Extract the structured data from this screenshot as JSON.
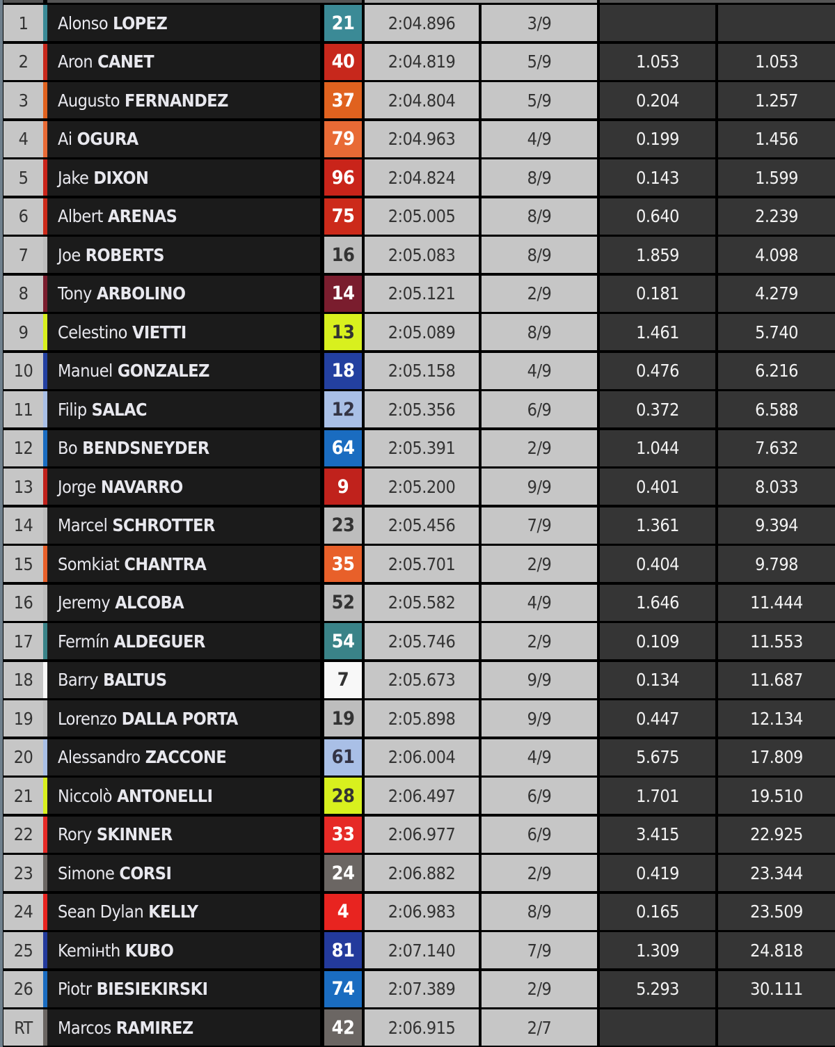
{
  "rows": [
    {
      "pos": "1",
      "first": "Alonso",
      "last": "LOPEZ",
      "num": "21",
      "color": "#3b8a96",
      "num_text": "#ffffff",
      "time": "2:04.896",
      "laps": "3/9",
      "gap": "",
      "total": ""
    },
    {
      "pos": "2",
      "first": "Aron",
      "last": "CANET",
      "num": "40",
      "color": "#c7281c",
      "num_text": "#ffffff",
      "time": "2:04.819",
      "laps": "5/9",
      "gap": "1.053",
      "total": "1.053"
    },
    {
      "pos": "3",
      "first": "Augusto",
      "last": "FERNANDEZ",
      "num": "37",
      "color": "#e0621f",
      "num_text": "#ffffff",
      "time": "2:04.804",
      "laps": "5/9",
      "gap": "0.204",
      "total": "1.257"
    },
    {
      "pos": "4",
      "first": "Ai",
      "last": "OGURA",
      "num": "79",
      "color": "#e86a35",
      "num_text": "#ffffff",
      "time": "2:04.963",
      "laps": "4/9",
      "gap": "0.199",
      "total": "1.456"
    },
    {
      "pos": "5",
      "first": "Jake",
      "last": "DIXON",
      "num": "96",
      "color": "#c9241a",
      "num_text": "#ffffff",
      "time": "2:04.824",
      "laps": "8/9",
      "gap": "0.143",
      "total": "1.599"
    },
    {
      "pos": "6",
      "first": "Albert",
      "last": "ARENAS",
      "num": "75",
      "color": "#cc2a1a",
      "num_text": "#ffffff",
      "time": "2:05.005",
      "laps": "8/9",
      "gap": "0.640",
      "total": "2.239"
    },
    {
      "pos": "7",
      "first": "Joe",
      "last": "ROBERTS",
      "num": "16",
      "color": "#bdbdbd",
      "num_text": "#333333",
      "time": "2:05.083",
      "laps": "8/9",
      "gap": "1.859",
      "total": "4.098"
    },
    {
      "pos": "8",
      "first": "Tony",
      "last": "ARBOLINO",
      "num": "14",
      "color": "#7a1d2e",
      "num_text": "#ffffff",
      "time": "2:05.121",
      "laps": "2/9",
      "gap": "0.181",
      "total": "4.279"
    },
    {
      "pos": "9",
      "first": "Celestino",
      "last": "VIETTI",
      "num": "13",
      "color": "#d8f01e",
      "num_text": "#333333",
      "time": "2:05.089",
      "laps": "8/9",
      "gap": "1.461",
      "total": "5.740"
    },
    {
      "pos": "10",
      "first": "Manuel",
      "last": "GONZALEZ",
      "num": "18",
      "color": "#2340a0",
      "num_text": "#ffffff",
      "time": "2:05.158",
      "laps": "4/9",
      "gap": "0.476",
      "total": "6.216"
    },
    {
      "pos": "11",
      "first": "Filip",
      "last": "SALAC",
      "num": "12",
      "color": "#a9bfe6",
      "num_text": "#333344",
      "time": "2:05.356",
      "laps": "6/9",
      "gap": "0.372",
      "total": "6.588"
    },
    {
      "pos": "12",
      "first": "Bo",
      "last": "BENDSNEYDER",
      "num": "64",
      "color": "#1a6cc0",
      "num_text": "#ffffff",
      "time": "2:05.391",
      "laps": "2/9",
      "gap": "1.044",
      "total": "7.632"
    },
    {
      "pos": "13",
      "first": "Jorge",
      "last": "NAVARRO",
      "num": "9",
      "color": "#c0221c",
      "num_text": "#ffffff",
      "time": "2:05.200",
      "laps": "9/9",
      "gap": "0.401",
      "total": "8.033"
    },
    {
      "pos": "14",
      "first": "Marcel",
      "last": "SCHROTTER",
      "num": "23",
      "color": "#bdbdbd",
      "num_text": "#333333",
      "time": "2:05.456",
      "laps": "7/9",
      "gap": "1.361",
      "total": "9.394"
    },
    {
      "pos": "15",
      "first": "Somkiat",
      "last": "CHANTRA",
      "num": "35",
      "color": "#e8602a",
      "num_text": "#ffffff",
      "time": "2:05.701",
      "laps": "2/9",
      "gap": "0.404",
      "total": "9.798"
    },
    {
      "pos": "16",
      "first": "Jeremy",
      "last": "ALCOBA",
      "num": "52",
      "color": "#bdbdbd",
      "num_text": "#333333",
      "time": "2:05.582",
      "laps": "4/9",
      "gap": "1.646",
      "total": "11.444"
    },
    {
      "pos": "17",
      "first": "Fermín",
      "last": "ALDEGUER",
      "num": "54",
      "color": "#3a8388",
      "num_text": "#ffffff",
      "time": "2:05.746",
      "laps": "2/9",
      "gap": "0.109",
      "total": "11.553"
    },
    {
      "pos": "18",
      "first": "Barry",
      "last": "BALTUS",
      "num": "7",
      "color": "#f8f8f8",
      "num_text": "#333333",
      "time": "2:05.673",
      "laps": "9/9",
      "gap": "0.134",
      "total": "11.687"
    },
    {
      "pos": "19",
      "first": "Lorenzo",
      "last": "DALLA PORTA",
      "num": "19",
      "color": "#bdbdbd",
      "num_text": "#333333",
      "time": "2:05.898",
      "laps": "9/9",
      "gap": "0.447",
      "total": "12.134"
    },
    {
      "pos": "20",
      "first": "Alessandro",
      "last": "ZACCONE",
      "num": "61",
      "color": "#a9bfe6",
      "num_text": "#333344",
      "time": "2:06.004",
      "laps": "4/9",
      "gap": "5.675",
      "total": "17.809"
    },
    {
      "pos": "21",
      "first": "Niccolò",
      "last": "ANTONELLI",
      "num": "28",
      "color": "#d8f01e",
      "num_text": "#333333",
      "time": "2:06.497",
      "laps": "6/9",
      "gap": "1.701",
      "total": "19.510"
    },
    {
      "pos": "22",
      "first": "Rory",
      "last": "SKINNER",
      "num": "33",
      "color": "#e62a26",
      "num_text": "#ffffff",
      "time": "2:06.977",
      "laps": "6/9",
      "gap": "3.415",
      "total": "22.925"
    },
    {
      "pos": "23",
      "first": "Simone",
      "last": "CORSI",
      "num": "24",
      "color": "#6b6663",
      "num_text": "#ffffff",
      "time": "2:06.882",
      "laps": "2/9",
      "gap": "0.419",
      "total": "23.344"
    },
    {
      "pos": "24",
      "first": "Sean Dylan",
      "last": "KELLY",
      "num": "4",
      "color": "#e82420",
      "num_text": "#ffffff",
      "time": "2:06.983",
      "laps": "8/9",
      "gap": "0.165",
      "total": "23.509"
    },
    {
      "pos": "25",
      "first": "Kemінth",
      "last": "KUBO",
      "num": "81",
      "color": "#233a9c",
      "num_text": "#ffffff",
      "time": "2:07.140",
      "laps": "7/9",
      "gap": "1.309",
      "total": "24.818"
    },
    {
      "pos": "26",
      "first": "Piotr",
      "last": "BIESIEKIRSKI",
      "num": "74",
      "color": "#1a6cc0",
      "num_text": "#ffffff",
      "time": "2:07.389",
      "laps": "2/9",
      "gap": "5.293",
      "total": "30.111"
    },
    {
      "pos": "RT",
      "first": "Marcos",
      "last": "RAMIREZ",
      "num": "42",
      "color": "#6b6663",
      "num_text": "#ffffff",
      "time": "2:06.915",
      "laps": "2/7",
      "gap": "",
      "total": ""
    }
  ]
}
